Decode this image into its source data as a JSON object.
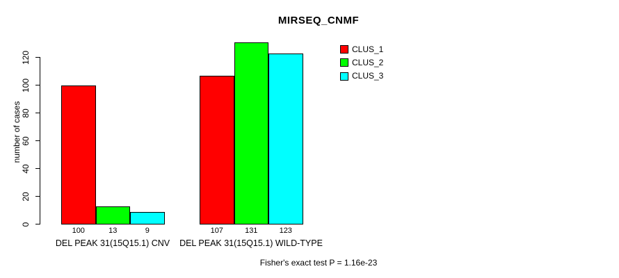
{
  "chart_data": {
    "type": "bar",
    "title": "MIRSEQ_CNMF",
    "ylabel": "number of cases",
    "xlabel": "",
    "ylim": [
      0,
      131
    ],
    "yticks": [
      0,
      20,
      40,
      60,
      80,
      100,
      120
    ],
    "categories": [
      "DEL PEAK 31(15Q15.1) CNV",
      "DEL PEAK 31(15Q15.1) WILD-TYPE"
    ],
    "series": [
      {
        "name": "CLUS_1",
        "color": "#ff0000",
        "values": [
          100,
          107
        ]
      },
      {
        "name": "CLUS_2",
        "color": "#00ff00",
        "values": [
          13,
          131
        ]
      },
      {
        "name": "CLUS_3",
        "color": "#00ffff",
        "values": [
          9,
          123
        ]
      }
    ],
    "bar_value_labels": [
      [
        100,
        13,
        9
      ],
      [
        107,
        131,
        123
      ]
    ],
    "bar_border_color": "#000000",
    "grid": false,
    "legend_position": "top-right",
    "legend_entries": [
      "CLUS_1",
      "CLUS_2",
      "CLUS_3"
    ],
    "annotation": "Fisher's exact test P = 1.16e-23",
    "background_color": "#ffffff"
  }
}
